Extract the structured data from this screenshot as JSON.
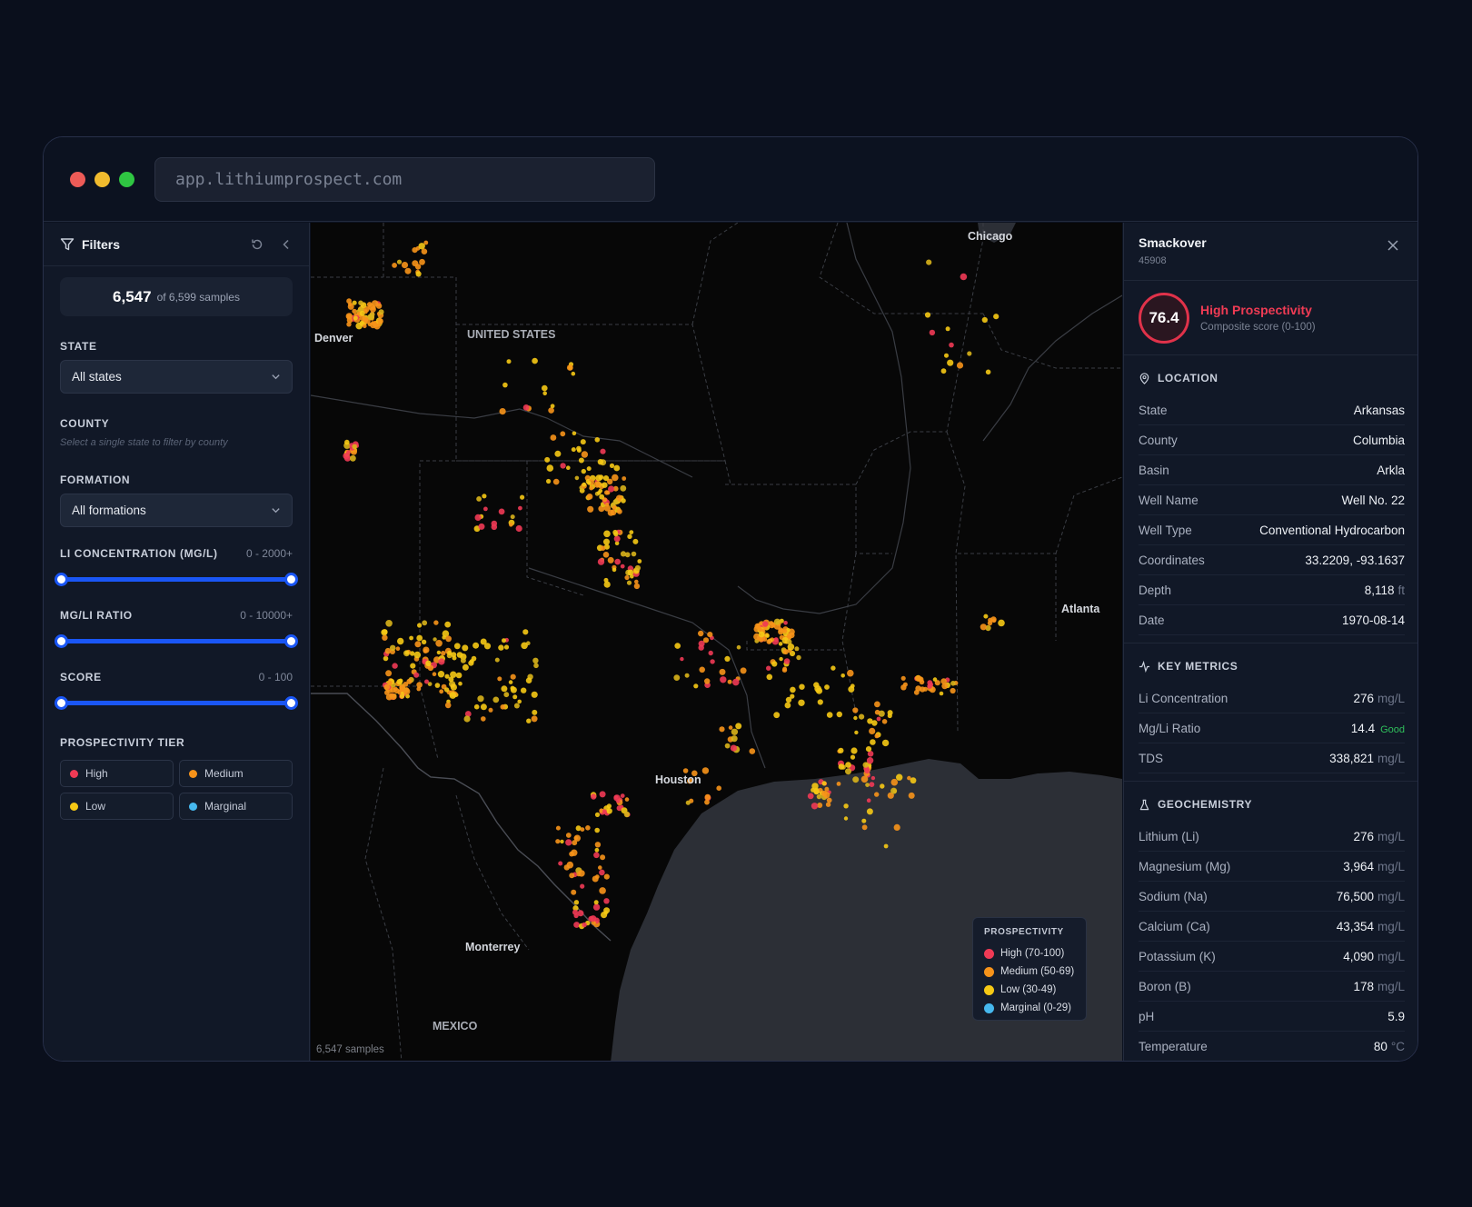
{
  "browser": {
    "url": "app.lithiumprospect.com"
  },
  "sidebar": {
    "title": "Filters",
    "count": {
      "shown": "6,547",
      "total_text": "of 6,599 samples"
    },
    "state": {
      "label": "STATE",
      "value": "All states"
    },
    "county": {
      "label": "COUNTY",
      "hint": "Select a single state to filter by county"
    },
    "formation": {
      "label": "FORMATION",
      "value": "All formations"
    },
    "li_concentration": {
      "label": "LI CONCENTRATION (MG/L)",
      "range": "0 - 2000+"
    },
    "mgli_ratio": {
      "label": "MG/LI RATIO",
      "range": "0 - 10000+"
    },
    "score": {
      "label": "SCORE",
      "range": "0 - 100"
    },
    "tier": {
      "label": "PROSPECTIVITY TIER",
      "options": [
        {
          "label": "High",
          "color": "#ef3a55"
        },
        {
          "label": "Medium",
          "color": "#f7931a"
        },
        {
          "label": "Low",
          "color": "#f6c915"
        },
        {
          "label": "Marginal",
          "color": "#46b8ee"
        }
      ]
    }
  },
  "map": {
    "labels": {
      "chicago": "Chicago",
      "denver": "Denver",
      "united_states": "UNITED STATES",
      "atlanta": "Atlanta",
      "houston": "Houston",
      "monterrey": "Monterrey",
      "mexico": "MEXICO"
    },
    "samples_text": "6,547 samples",
    "legend": {
      "title": "PROSPECTIVITY",
      "items": [
        {
          "label": "High (70-100)",
          "color": "#ef3a55"
        },
        {
          "label": "Medium (50-69)",
          "color": "#f7931a"
        },
        {
          "label": "Low (30-49)",
          "color": "#f6c915"
        },
        {
          "label": "Marginal (0-29)",
          "color": "#46b8ee"
        }
      ]
    }
  },
  "detail": {
    "name": "Smackover",
    "id": "45908",
    "score": "76.4",
    "tier": "High Prospectivity",
    "score_desc": "Composite score (0-100)",
    "location": {
      "title": "LOCATION",
      "rows": [
        {
          "k": "State",
          "v": "Arkansas",
          "u": ""
        },
        {
          "k": "County",
          "v": "Columbia",
          "u": ""
        },
        {
          "k": "Basin",
          "v": "Arkla",
          "u": ""
        },
        {
          "k": "Well Name",
          "v": "Well No. 22",
          "u": ""
        },
        {
          "k": "Well Type",
          "v": "Conventional Hydrocarbon",
          "u": ""
        },
        {
          "k": "Coordinates",
          "v": "33.2209, -93.1637",
          "u": ""
        },
        {
          "k": "Depth",
          "v": "8,118",
          "u": "ft"
        },
        {
          "k": "Date",
          "v": "1970-08-14",
          "u": ""
        }
      ]
    },
    "metrics": {
      "title": "KEY METRICS",
      "rows": [
        {
          "k": "Li Concentration",
          "v": "276",
          "u": "mg/L"
        },
        {
          "k": "Mg/Li Ratio",
          "v": "14.4",
          "u": "",
          "badge": "Good"
        },
        {
          "k": "TDS",
          "v": "338,821",
          "u": "mg/L"
        }
      ]
    },
    "geochem": {
      "title": "GEOCHEMISTRY",
      "rows": [
        {
          "k": "Lithium (Li)",
          "v": "276",
          "u": "mg/L"
        },
        {
          "k": "Magnesium (Mg)",
          "v": "3,964",
          "u": "mg/L"
        },
        {
          "k": "Sodium (Na)",
          "v": "76,500",
          "u": "mg/L"
        },
        {
          "k": "Calcium (Ca)",
          "v": "43,354",
          "u": "mg/L"
        },
        {
          "k": "Potassium (K)",
          "v": "4,090",
          "u": "mg/L"
        },
        {
          "k": "Boron (B)",
          "v": "178",
          "u": "mg/L"
        },
        {
          "k": "pH",
          "v": "5.9",
          "u": ""
        },
        {
          "k": "Temperature",
          "v": "80",
          "u": "°C"
        }
      ]
    }
  }
}
